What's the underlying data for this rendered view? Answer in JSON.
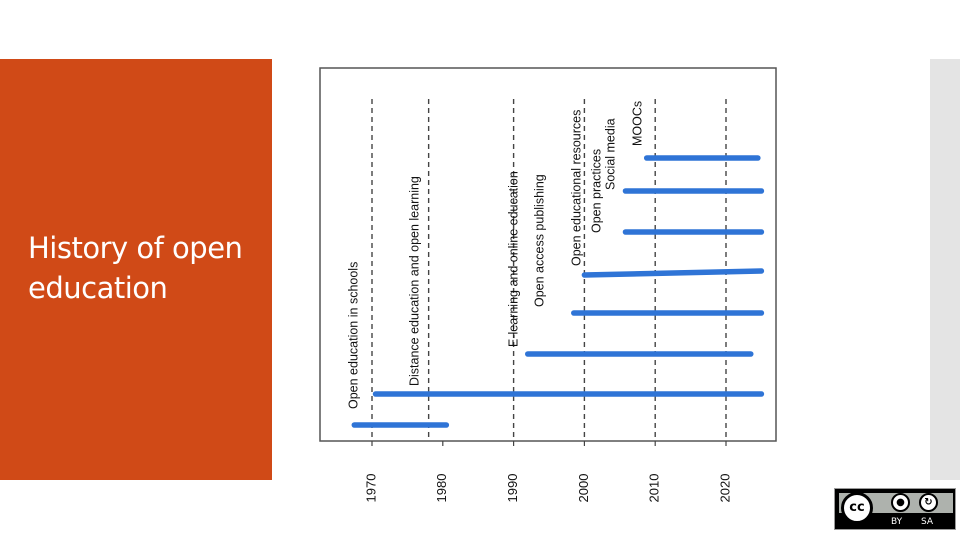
{
  "slide": {
    "title": "History of open education"
  },
  "license_badge": {
    "cc_text": "cc",
    "by_label": "BY",
    "sa_label": "SA"
  },
  "colors": {
    "accent_panel": "#d04a17",
    "bar": "#2f74d6"
  },
  "chart_data": {
    "type": "timeline",
    "xlim": [
      1966,
      2026
    ],
    "x_ticks": [
      1970,
      1980,
      1990,
      2000,
      2010,
      2020
    ],
    "tick_labels": [
      "1970",
      "1980",
      "1990",
      "2000",
      "2010",
      "2020"
    ],
    "grid": "dashed vertical lines at movement start years",
    "movements": [
      {
        "name": "Open education in schools",
        "start": 1967.5,
        "end": 1980.5
      },
      {
        "name": "Distance education and open learning",
        "start": 1970.5,
        "end": 2025
      },
      {
        "name": "E-learning and online education",
        "start": 1992,
        "end": 2023.5
      },
      {
        "name": "Open access publishing",
        "start": 1998.5,
        "end": 2025
      },
      {
        "name": "Open educational resources",
        "start": 2000,
        "end": 2025
      },
      {
        "name": "Open practices",
        "start": 2005.8,
        "end": 2025
      },
      {
        "name": "Social media",
        "start": 2005.8,
        "end": 2025
      },
      {
        "name": "MOOCs",
        "start": 2008.8,
        "end": 2024.5
      }
    ],
    "dashed_lines": [
      1970,
      1978,
      1990,
      2000,
      2010,
      2020
    ]
  }
}
